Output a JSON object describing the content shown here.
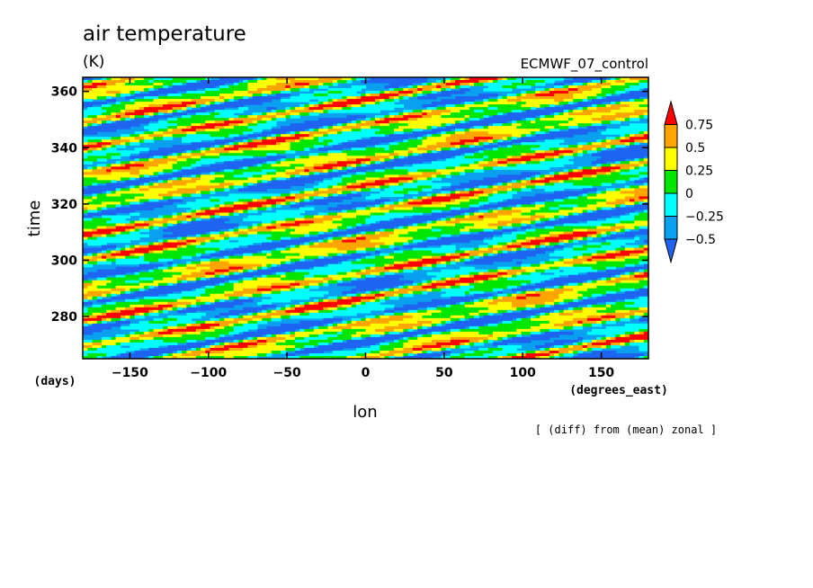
{
  "chart_data": {
    "type": "heatmap",
    "title": "air temperature",
    "units": "(K)",
    "experiment": "ECMWF_07_control",
    "xlabel": "lon",
    "xunit": "(degrees_east)",
    "ylabel": "time",
    "yunit": "(days)",
    "note": "[ (diff) from (mean) zonal ]",
    "xlim": [
      -180,
      180
    ],
    "ylim": [
      265,
      365
    ],
    "x_ticks": [
      -150,
      -100,
      -50,
      0,
      50,
      100,
      150
    ],
    "y_ticks": [
      280,
      300,
      320,
      340,
      360
    ],
    "colorbar": {
      "levels": [
        -0.5,
        -0.25,
        0,
        0.25,
        0.5,
        0.75
      ],
      "labels": [
        "0.75",
        "0.5",
        "0.25",
        "0",
        "−0.25",
        "−0.5"
      ],
      "colors": [
        "#1e64f0",
        "#0aa0f0",
        "#00ffff",
        "#00e600",
        "#ffff00",
        "#ffa500",
        "#ff0000"
      ]
    },
    "pattern": "eastward-propagating diagonal anomaly bands"
  }
}
